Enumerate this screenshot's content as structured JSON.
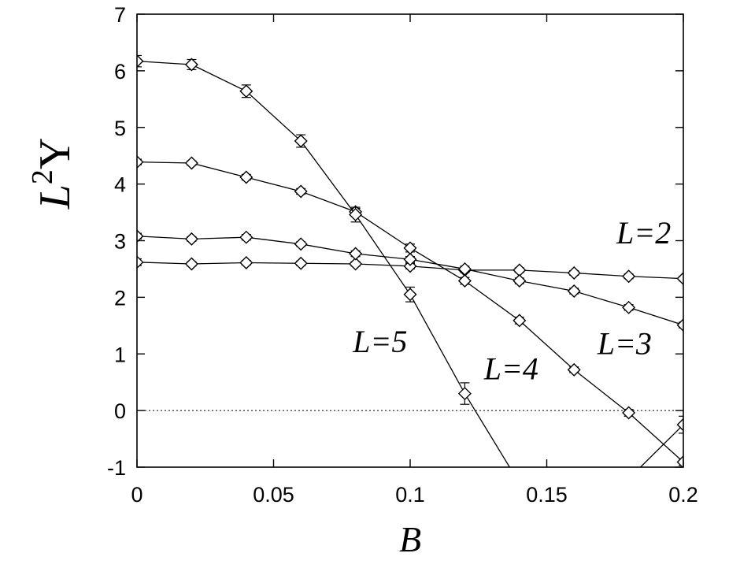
{
  "chart_data": {
    "type": "line",
    "title": "",
    "xlabel": "B",
    "ylabel": {
      "base": "L",
      "sup": "2",
      "tail": "Y"
    },
    "xlim": [
      0,
      0.2
    ],
    "ylim": [
      -1,
      7
    ],
    "xticks": [
      0,
      0.05,
      0.1,
      0.15,
      0.2
    ],
    "xtick_labels": [
      "0",
      "0.05",
      "0.1",
      "0.15",
      "0.2"
    ],
    "yticks": [
      -1,
      0,
      1,
      2,
      3,
      4,
      5,
      6,
      7
    ],
    "ytick_labels": [
      "-1",
      "0",
      "1",
      "2",
      "3",
      "4",
      "5",
      "6",
      "7"
    ],
    "grid": false,
    "reference_line": {
      "y": 0,
      "style": "dotted"
    },
    "marker": "diamond",
    "series": [
      {
        "name": "L=2",
        "x": [
          0,
          0.02,
          0.04,
          0.06,
          0.08,
          0.1,
          0.12,
          0.14,
          0.16,
          0.18,
          0.2
        ],
        "y": [
          2.62,
          2.59,
          2.61,
          2.6,
          2.59,
          2.55,
          2.48,
          2.48,
          2.43,
          2.37,
          2.33
        ],
        "err": [
          0.06,
          0.04,
          0.04,
          0.04,
          0.04,
          0.05,
          0.04,
          0.04,
          0.04,
          0.04,
          0.04
        ]
      },
      {
        "name": "L=3",
        "x": [
          0,
          0.02,
          0.04,
          0.06,
          0.08,
          0.1,
          0.12,
          0.14,
          0.16,
          0.18,
          0.2
        ],
        "y": [
          3.08,
          3.03,
          3.06,
          2.94,
          2.77,
          2.67,
          2.5,
          2.29,
          2.11,
          1.82,
          1.51
        ],
        "err": [
          0.05,
          0.04,
          0.05,
          0.04,
          0.05,
          0.05,
          0.05,
          0.05,
          0.05,
          0.05,
          0.05
        ]
      },
      {
        "name": "L=4",
        "x": [
          0,
          0.02,
          0.04,
          0.06,
          0.08,
          0.1,
          0.12,
          0.14,
          0.16,
          0.18,
          0.2
        ],
        "y": [
          4.39,
          4.37,
          4.12,
          3.87,
          3.51,
          2.87,
          2.29,
          1.59,
          0.72,
          -0.04,
          -0.91
        ],
        "err": [
          0.05,
          0.04,
          0.05,
          0.05,
          0.06,
          0.07,
          0.06,
          0.06,
          0.05,
          0.06,
          0.06
        ]
      },
      {
        "name": "L=5",
        "x": [
          0,
          0.02,
          0.04,
          0.06,
          0.08,
          0.1,
          0.12
        ],
        "y": [
          6.17,
          6.11,
          5.64,
          4.76,
          3.46,
          2.05,
          0.3
        ],
        "err": [
          0.1,
          0.09,
          0.11,
          0.11,
          0.13,
          0.13,
          0.19
        ],
        "continues_to": [
          0.1364,
          -1
        ]
      }
    ],
    "extra_line": {
      "x": [
        0.1843,
        0.2
      ],
      "y": [
        -1,
        -0.25
      ],
      "marker_index": 1,
      "err": 0.15
    },
    "annotations": [
      {
        "text": "L=2",
        "anchor_x": 0.1755,
        "anchor_y": 2.95
      },
      {
        "text": "L=3",
        "anchor_x": 0.1685,
        "anchor_y": 1.0
      },
      {
        "text": "L=4",
        "anchor_x": 0.127,
        "anchor_y": 0.55
      },
      {
        "text": "L=5",
        "anchor_x": 0.079,
        "anchor_y": 1.03
      }
    ]
  }
}
